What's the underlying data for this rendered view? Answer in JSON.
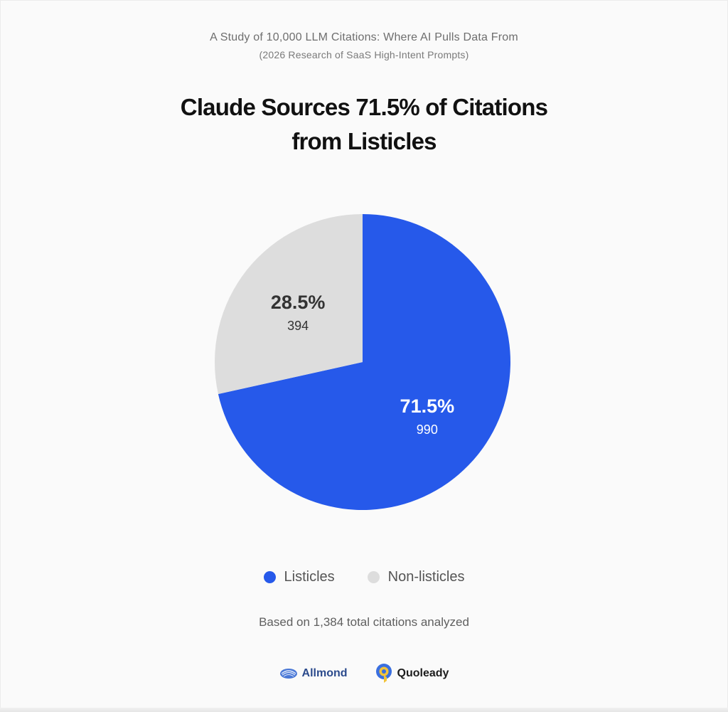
{
  "header": {
    "study_title": "A Study of 10,000 LLM Citations: Where AI Pulls Data From",
    "study_subtitle": "(2026 Research of SaaS High-Intent Prompts)"
  },
  "chart_data": {
    "type": "pie",
    "title": "Claude Sources 71.5% of Citations from Listicles",
    "title_lines": [
      "Claude Sources 71.5% of Citations",
      "from Listicles"
    ],
    "slices": [
      {
        "name": "Listicles",
        "value": 990,
        "percent": 71.5,
        "percent_label": "71.5%",
        "count_label": "990",
        "color": "#2659ea",
        "label_color": "#ffffff"
      },
      {
        "name": "Non-listicles",
        "value": 394,
        "percent": 28.5,
        "percent_label": "28.5%",
        "count_label": "394",
        "color": "#dddddd",
        "label_color": "#333333"
      }
    ],
    "start": "12 o'clock",
    "direction": "clockwise",
    "legend_position": "bottom-center"
  },
  "footnote": "Based on 1,384 total citations analyzed",
  "logos": {
    "allmond": {
      "name": "Allmond",
      "icon": "allmond-shell-icon",
      "color": "#2b4a8c"
    },
    "quoleady": {
      "name": "Quoleady",
      "icon": "quoleady-q-icon",
      "color": "#f2c33a"
    }
  }
}
